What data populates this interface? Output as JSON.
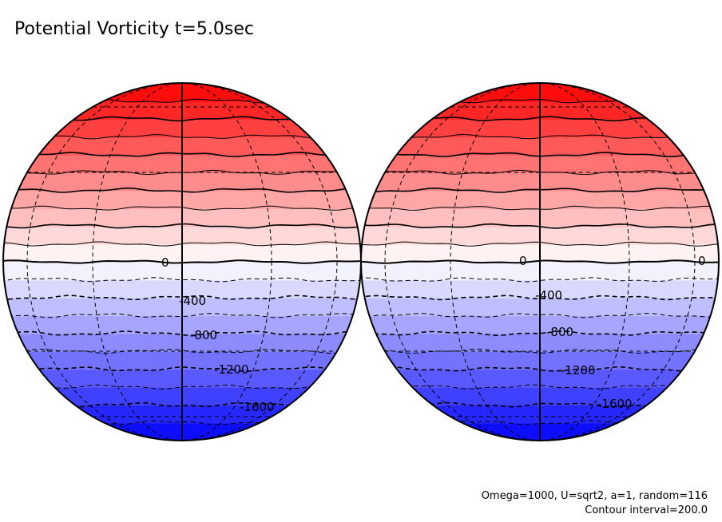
{
  "title": "Potential Vorticity t=5.0sec",
  "footer": {
    "params": "Omega=1000, U=sqrt2, a=1, random=116",
    "contour_interval": "Contour interval=200.0"
  },
  "field": {
    "variable": "Potential Vorticity",
    "time": "t=5.0sec",
    "contour_interval": 200.0,
    "projection": "orthographic, two hemispheres side by side",
    "colors": {
      "positive": "#ff0000",
      "zero": "#ffffff",
      "negative": "#0000ff"
    },
    "contour_levels": [
      -2000,
      -1800,
      -1600,
      -1400,
      -1200,
      -1000,
      -800,
      -600,
      -400,
      -200,
      0,
      200,
      400,
      600,
      800,
      1000,
      1200,
      1400,
      1600,
      1800,
      2000
    ],
    "left_labels": [
      {
        "text": "0",
        "value": 0
      },
      {
        "text": "-400",
        "value": -400
      },
      {
        "text": "-800",
        "value": -800
      },
      {
        "text": "-1200",
        "value": -1200
      },
      {
        "text": "-1600",
        "value": -1600
      }
    ],
    "right_labels": [
      {
        "text": "0",
        "value": 0
      },
      {
        "text": "0",
        "value": 0
      },
      {
        "text": "-400",
        "value": -400
      },
      {
        "text": "-800",
        "value": -800
      },
      {
        "text": "-1200",
        "value": -1200
      },
      {
        "text": "-1600",
        "value": -1600
      }
    ]
  }
}
